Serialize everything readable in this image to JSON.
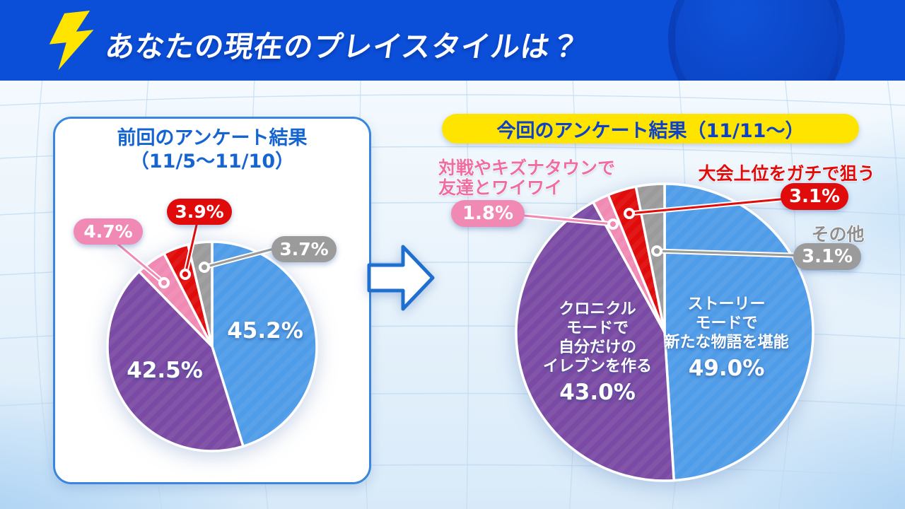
{
  "header": {
    "title": "あなたの現在のプレイスタイルは？"
  },
  "left_chart": {
    "title_line1": "前回のアンケート結果",
    "title_line2": "（11/5～11/10）"
  },
  "right_chart": {
    "title": "今回のアンケート結果（11/11～）",
    "pink_label_line1": "対戦やキズナタウンで",
    "pink_label_line2": "友達とワイワイ",
    "red_label": "大会上位をガチで狙う",
    "gray_label": "その他",
    "purple_label_line1": "クロニクル",
    "purple_label_line2": "モードで",
    "purple_label_line3": "自分だけの",
    "purple_label_line4": "イレブンを作る",
    "blue_label_line1": "ストーリー",
    "blue_label_line2": "モードで",
    "blue_label_line3": "新たな物語を堪能"
  },
  "chart_data": [
    {
      "type": "pie",
      "title": "前回のアンケート結果（11/5～11/10）",
      "direction": "clockwise_from_top",
      "slices": [
        {
          "value": 45.2,
          "display": "45.2%",
          "color": "#4f9ce8"
        },
        {
          "value": 42.5,
          "display": "42.5%",
          "color": "#7a4aa4"
        },
        {
          "value": 4.7,
          "display": "4.7%",
          "color": "#f08ab4"
        },
        {
          "value": 3.9,
          "display": "3.9%",
          "color": "#e00b0b"
        },
        {
          "value": 3.7,
          "display": "3.7%",
          "color": "#9b9b9b"
        }
      ]
    },
    {
      "type": "pie",
      "title": "今回のアンケート結果（11/11～）",
      "direction": "clockwise_from_top",
      "slices": [
        {
          "label": "ストーリーモードで新たな物語を堪能",
          "value": 49.0,
          "display": "49.0%",
          "color": "#4f9ce8"
        },
        {
          "label": "クロニクルモードで自分だけのイレブンを作る",
          "value": 43.0,
          "display": "43.0%",
          "color": "#7a4aa4"
        },
        {
          "label": "対戦やキズナタウンで友達とワイワイ",
          "value": 1.8,
          "display": "1.8%",
          "color": "#f08ab4"
        },
        {
          "label": "大会上位をガチで狙う",
          "value": 3.1,
          "display": "3.1%",
          "color": "#e00b0b"
        },
        {
          "label": "その他",
          "value": 3.1,
          "display": "3.1%",
          "color": "#9b9b9b"
        }
      ]
    }
  ],
  "colors": {
    "header_blue": "#0b4ed8",
    "accent_yellow": "#ffe400",
    "panel_border_blue": "#3b86dd",
    "title_text_blue": "#1464d2"
  }
}
